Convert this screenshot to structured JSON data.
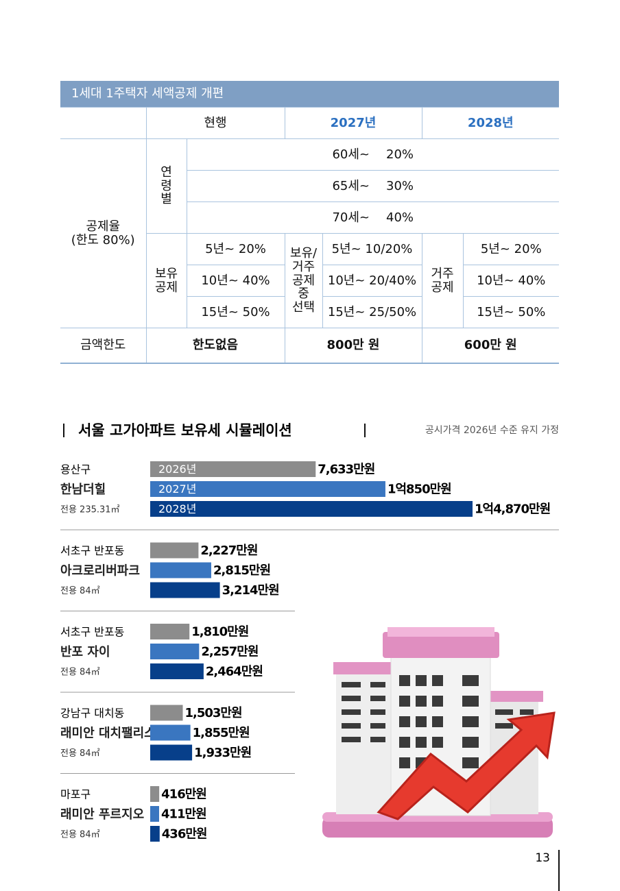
{
  "table": {
    "title": "1세대 1주택자 세액공제 개편",
    "headers": [
      "현행",
      "2027년",
      "2028년"
    ],
    "rate_label": [
      "공제율",
      "(한도 80%)"
    ],
    "age_label": [
      "연",
      "령",
      "별"
    ],
    "age_rows": [
      [
        "60세~",
        "20%"
      ],
      [
        "65세~",
        "30%"
      ],
      [
        "70세~",
        "40%"
      ]
    ],
    "hold_label": [
      "보유",
      "공제"
    ],
    "current_hold": [
      "5년~ 20%",
      "10년~ 40%",
      "15년~ 50%"
    ],
    "option_label": [
      "보유/",
      "거주",
      "공제",
      "중",
      "선택"
    ],
    "option_hold": [
      "5년~ 10/20%",
      "10년~ 20/40%",
      "15년~ 25/50%"
    ],
    "reside_label": [
      "거주",
      "공제"
    ],
    "reside_hold": [
      "5년~ 20%",
      "10년~ 40%",
      "15년~ 50%"
    ],
    "limit_label": "금액한도",
    "limits": [
      "한도없음",
      "800만 원",
      "600만 원"
    ]
  },
  "chart_data": {
    "type": "bar",
    "orientation": "horizontal",
    "title": "서울 고가아파트 보유세 시뮬레이션",
    "subtitle": "공시가격 2026년 수준 유지 가정",
    "districts": [
      "용산구",
      "서초구 반포동",
      "서초구 반포동",
      "강남구 대치동",
      "마포구"
    ],
    "categories": [
      "한남더힐",
      "아크로리버파크",
      "반포 자이",
      "래미안 대치팰리스",
      "래미안 푸르지오"
    ],
    "areas": [
      "전용 235.31㎡",
      "전용 84㎡",
      "전용 84㎡",
      "전용 84㎡",
      "전용 84㎡"
    ],
    "series": [
      {
        "name": "2026년",
        "color": "#8c8c8c",
        "values": [
          7633,
          2227,
          1810,
          1503,
          416
        ],
        "value_labels": [
          "7,633만원",
          "2,227만원",
          "1,810만원",
          "1,503만원",
          "416만원"
        ]
      },
      {
        "name": "2027년",
        "color": "#3a76c0",
        "values": [
          10850,
          2815,
          2257,
          1855,
          411
        ],
        "value_labels": [
          "1억850만원",
          "2,815만원",
          "2,257만원",
          "1,855만원",
          "411만원"
        ]
      },
      {
        "name": "2028년",
        "color": "#073f8a",
        "values": [
          14870,
          3214,
          2464,
          1933,
          436
        ],
        "value_labels": [
          "1억4,870만원",
          "3,214만원",
          "2,464만원",
          "1,933만원",
          "436만원"
        ]
      }
    ]
  },
  "page_number": "13"
}
